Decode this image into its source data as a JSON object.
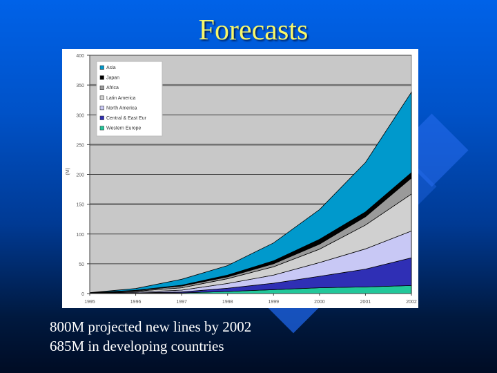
{
  "slide": {
    "title": "Forecasts",
    "caption_lines": [
      "800M projected new lines by 2002",
      "685M in developing countries"
    ],
    "colors": {
      "title": "#f7f76a",
      "background_top": "#0062e8",
      "background_bottom": "#000c24",
      "caption": "#ffffff"
    }
  },
  "chart_data": {
    "type": "area",
    "stacked": true,
    "title": "",
    "xlabel": "",
    "ylabel": "(M)",
    "ylim": [
      0,
      400
    ],
    "yticks": [
      0,
      50,
      100,
      150,
      200,
      250,
      300,
      350,
      400
    ],
    "categories": [
      "1995",
      "1996",
      "1997",
      "1998",
      "1999",
      "2000",
      "2001",
      "2002"
    ],
    "grid": true,
    "legend_position": "upper-left-inside",
    "plot_background": "#c8c8c8",
    "series": [
      {
        "name": "Western Europe",
        "color": "#22c79a",
        "values": [
          0.3,
          0.5,
          1.2,
          3.5,
          6.6,
          9.7,
          11.2,
          13.5
        ]
      },
      {
        "name": "Central & East Eur",
        "color": "#2f2fb5",
        "values": [
          0.2,
          0.7,
          1.5,
          5.5,
          10.8,
          19.3,
          29.8,
          46.5
        ]
      },
      {
        "name": "North America",
        "color": "#c8c8f5",
        "values": [
          0.3,
          1.3,
          3.1,
          8.0,
          13.6,
          23.0,
          34.0,
          45.0
        ]
      },
      {
        "name": "Latin America",
        "color": "#d0d0d0",
        "values": [
          0.3,
          1.5,
          3.9,
          8.0,
          14.0,
          22.5,
          40.0,
          62.0
        ]
      },
      {
        "name": "Africa",
        "color": "#9a9a9a",
        "values": [
          0.1,
          1.0,
          3.0,
          3.0,
          5.0,
          8.5,
          14.0,
          27.0
        ]
      },
      {
        "name": "Japan",
        "color": "#000000",
        "values": [
          0.1,
          0.5,
          1.3,
          3.0,
          5.0,
          8.0,
          8.0,
          9.0
        ]
      },
      {
        "name": "Asia",
        "color": "#0099cc",
        "values": [
          0.2,
          3.0,
          10.0,
          16.0,
          30.0,
          50.0,
          83.0,
          135.0
        ]
      }
    ],
    "legend_order": [
      "Asia",
      "Japan",
      "Africa",
      "Latin America",
      "North America",
      "Central & East Eur",
      "Western Europe"
    ]
  }
}
